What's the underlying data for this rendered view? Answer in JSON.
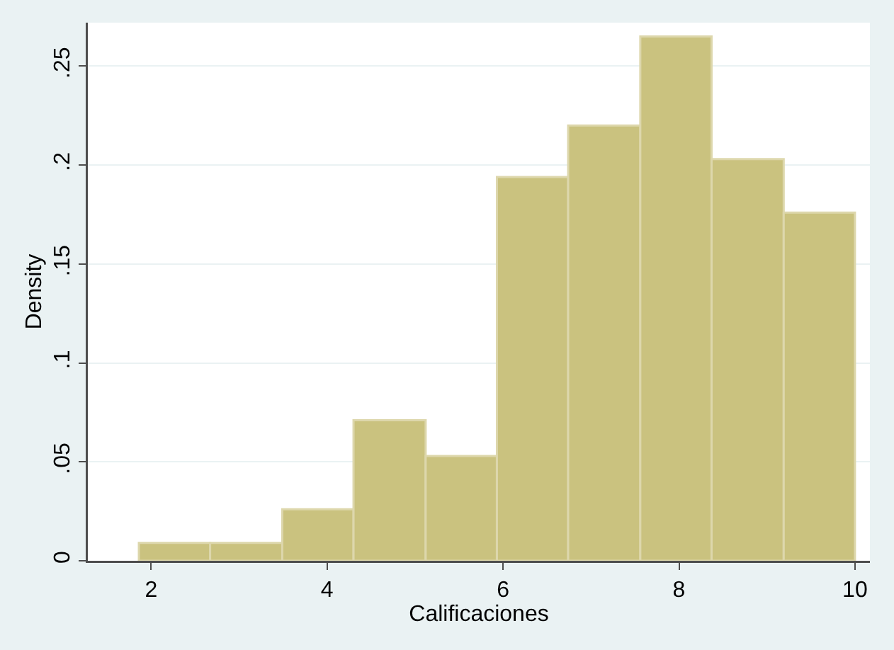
{
  "chart_data": {
    "type": "histogram",
    "xlabel": "Calificaciones",
    "ylabel": "Density",
    "bins": [
      1.86,
      2.67,
      3.49,
      4.3,
      5.12,
      5.93,
      6.74,
      7.56,
      8.37,
      9.19,
      10
    ],
    "values": [
      0.009,
      0.009,
      0.026,
      0.071,
      0.053,
      0.194,
      0.22,
      0.265,
      0.203,
      0.176
    ],
    "color": "#cac27f",
    "xlim": [
      1.28,
      10.17
    ],
    "xticks": [
      2,
      4,
      6,
      8,
      10
    ],
    "ylim": [
      0,
      0.272
    ],
    "yticks": [
      0,
      {
        "value": 0.05,
        "label": ".05"
      },
      {
        "value": 0.1,
        "label": ".1"
      },
      {
        "value": 0.15,
        "label": ".15"
      },
      {
        "value": 0.2,
        "label": ".2"
      },
      {
        "value": 0.25,
        "label": ".25"
      }
    ],
    "grid": "y"
  }
}
